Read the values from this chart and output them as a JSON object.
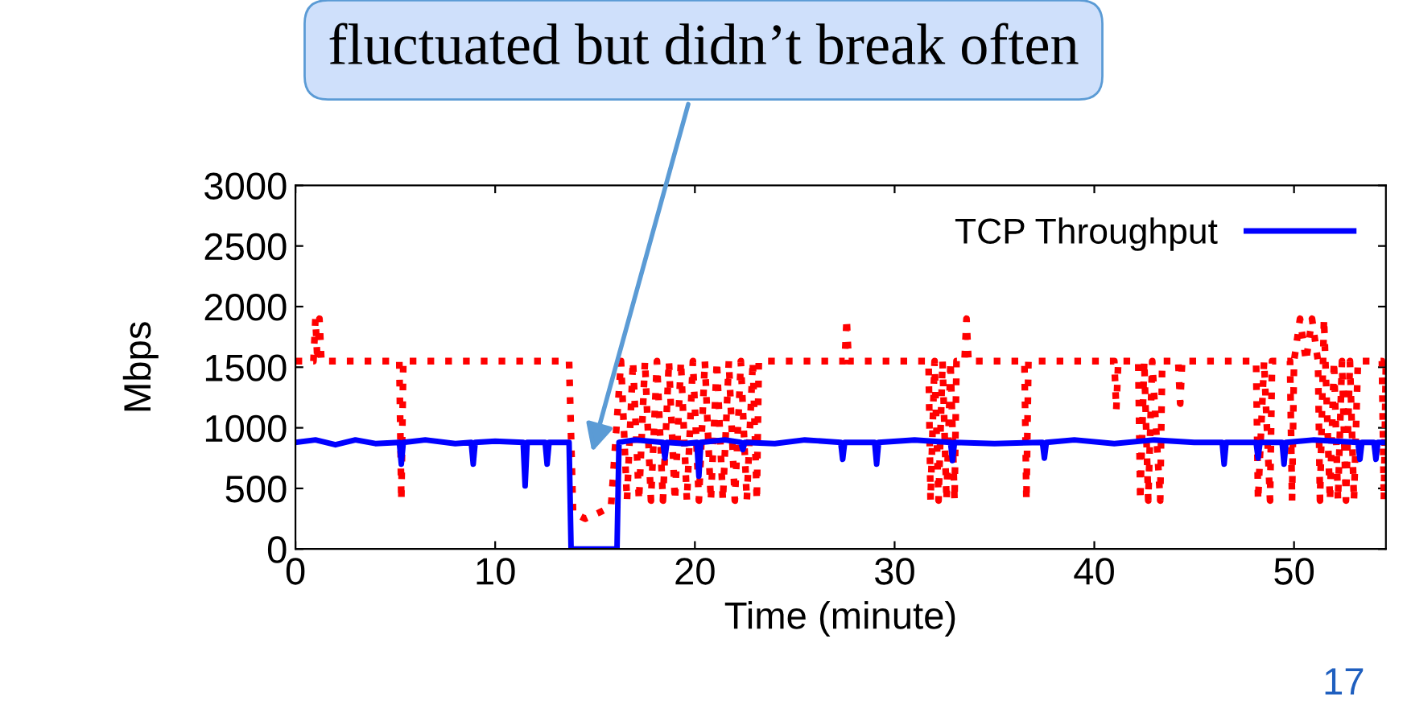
{
  "chart_data": {
    "type": "line",
    "xlabel": "Time (minute)",
    "ylabel": "Mbps",
    "xlim": [
      0,
      54.6
    ],
    "xticks": [
      0,
      10,
      20,
      30,
      40,
      50
    ],
    "ylim": [
      0,
      3000
    ],
    "yticks": [
      0,
      500,
      1000,
      1500,
      2000,
      2500,
      3000
    ],
    "grid": false,
    "legend": "top right",
    "marker": "none",
    "series": [
      {
        "color": "#ff0000",
        "line_style": "dotted",
        "x": [
          0,
          0.9,
          1.0,
          1.1,
          1.2,
          1.3,
          5.2,
          5.3,
          5.4,
          13.7,
          13.9,
          14.5,
          15.2,
          15.8,
          16.3,
          16.6,
          16.9,
          17.2,
          17.5,
          17.8,
          18.1,
          18.4,
          18.7,
          19.0,
          19.3,
          19.6,
          19.9,
          20.2,
          20.5,
          20.8,
          21.1,
          21.4,
          21.7,
          22.0,
          22.3,
          22.6,
          22.9,
          23.1,
          23.2,
          27.5,
          27.6,
          27.7,
          31.7,
          31.8,
          32.0,
          32.2,
          32.4,
          32.6,
          32.8,
          33.0,
          33.1,
          33.5,
          33.6,
          33.7,
          36.5,
          36.6,
          36.7,
          41.0,
          41.1,
          41.2,
          42.2,
          42.3,
          42.5,
          42.7,
          42.9,
          43.3,
          43.4,
          44.2,
          44.3,
          44.4,
          48.1,
          48.2,
          48.5,
          48.8,
          48.9,
          49.8,
          49.9,
          50.0,
          50.3,
          50.6,
          50.9,
          51.2,
          51.3,
          51.5,
          51.8,
          52.0,
          52.2,
          52.4,
          52.6,
          52.8,
          53.0,
          53.2,
          54.4,
          54.5,
          54.6
        ],
        "values": [
          1550,
          1550,
          1900,
          1550,
          1900,
          1550,
          1550,
          400,
          1550,
          1550,
          300,
          250,
          300,
          350,
          1550,
          400,
          1550,
          400,
          1550,
          400,
          1550,
          400,
          1550,
          400,
          1550,
          400,
          1550,
          400,
          1550,
          400,
          1550,
          400,
          1550,
          400,
          1550,
          400,
          1550,
          400,
          1550,
          1550,
          1900,
          1550,
          1550,
          400,
          1550,
          400,
          1550,
          400,
          1550,
          400,
          1550,
          1550,
          1900,
          1550,
          1550,
          400,
          1550,
          1550,
          1150,
          1550,
          1550,
          400,
          1550,
          400,
          1550,
          400,
          1550,
          1550,
          1200,
          1550,
          1550,
          400,
          1550,
          400,
          1550,
          1550,
          400,
          1550,
          1900,
          1550,
          1900,
          1550,
          400,
          1900,
          400,
          1550,
          400,
          1550,
          400,
          1550,
          400,
          1550,
          1550,
          400,
          1550
        ]
      },
      {
        "name": "TCP Throughput",
        "color": "#0000ff",
        "line_style": "solid",
        "x": [
          0,
          1,
          2,
          3,
          4,
          5.2,
          5.3,
          5.4,
          6.5,
          8,
          8.8,
          8.9,
          9.0,
          10,
          11.4,
          11.5,
          11.6,
          12.5,
          12.6,
          12.7,
          13.7,
          13.8,
          16.1,
          16.2,
          17,
          18.4,
          18.5,
          18.6,
          19.5,
          20.1,
          20.2,
          20.3,
          21.5,
          22.3,
          22.4,
          22.5,
          24,
          25.5,
          27.3,
          27.4,
          27.5,
          29.0,
          29.1,
          29.2,
          31,
          32.8,
          32.9,
          33.0,
          35,
          37.4,
          37.5,
          37.6,
          39,
          41,
          43,
          45,
          46.4,
          46.5,
          46.6,
          48.1,
          48.2,
          48.3,
          49.4,
          49.5,
          49.6,
          51,
          53.2,
          53.3,
          53.4,
          54.0,
          54.1,
          54.2,
          54.6
        ],
        "values": [
          880,
          900,
          860,
          900,
          870,
          880,
          700,
          880,
          900,
          870,
          880,
          700,
          880,
          890,
          880,
          520,
          880,
          880,
          700,
          880,
          880,
          0,
          0,
          880,
          900,
          880,
          750,
          880,
          870,
          880,
          600,
          880,
          900,
          880,
          820,
          880,
          870,
          900,
          880,
          740,
          880,
          880,
          700,
          880,
          900,
          880,
          730,
          880,
          870,
          880,
          750,
          880,
          900,
          870,
          900,
          880,
          880,
          700,
          880,
          880,
          750,
          880,
          880,
          700,
          880,
          900,
          880,
          740,
          880,
          880,
          740,
          880,
          880
        ]
      }
    ],
    "annotations": [
      "fluctuated but didn’t break often",
      "17"
    ]
  }
}
